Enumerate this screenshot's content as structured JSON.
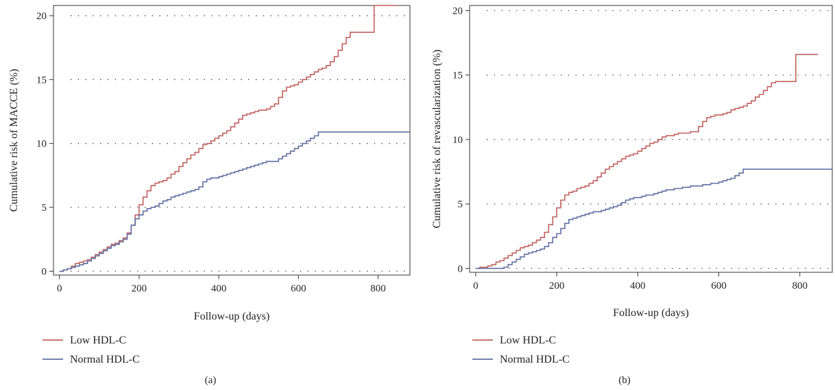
{
  "chart_data": [
    {
      "type": "line",
      "panel_label": "(a)",
      "xlabel": "Follow-up (days)",
      "ylabel": "Cumulative risk of MACCE (%)",
      "xlim": [
        -15,
        880
      ],
      "ylim": [
        -0.3,
        20.8
      ],
      "xticks": [
        0,
        200,
        400,
        600,
        800
      ],
      "yticks": [
        0,
        5,
        10,
        15,
        20
      ],
      "grid": "horizontal-dotted",
      "legend_position": "bottom-left",
      "series": [
        {
          "name": "Low HDL-C",
          "color": "#c0605c",
          "x": [
            0,
            10,
            20,
            30,
            40,
            50,
            60,
            70,
            80,
            90,
            100,
            110,
            120,
            130,
            140,
            150,
            160,
            170,
            180,
            190,
            200,
            210,
            220,
            230,
            240,
            250,
            260,
            270,
            280,
            290,
            300,
            310,
            320,
            330,
            340,
            350,
            360,
            370,
            380,
            390,
            400,
            410,
            420,
            430,
            440,
            450,
            460,
            470,
            480,
            490,
            500,
            510,
            520,
            530,
            540,
            550,
            560,
            570,
            580,
            590,
            600,
            610,
            620,
            630,
            640,
            650,
            660,
            670,
            680,
            690,
            700,
            710,
            720,
            730,
            740,
            760,
            780,
            790,
            800,
            820,
            845
          ],
          "y": [
            0,
            0.1,
            0.2,
            0.4,
            0.6,
            0.7,
            0.8,
            0.9,
            1.1,
            1.3,
            1.5,
            1.7,
            1.9,
            2.1,
            2.2,
            2.4,
            2.6,
            3.0,
            3.6,
            4.4,
            5.2,
            5.8,
            6.3,
            6.7,
            6.9,
            7.0,
            7.1,
            7.3,
            7.6,
            7.8,
            8.2,
            8.5,
            8.8,
            9.1,
            9.3,
            9.6,
            9.9,
            10.0,
            10.2,
            10.4,
            10.6,
            10.8,
            11.0,
            11.3,
            11.6,
            11.9,
            12.2,
            12.3,
            12.4,
            12.5,
            12.6,
            12.6,
            12.7,
            12.9,
            13.1,
            13.6,
            14.1,
            14.4,
            14.5,
            14.6,
            14.8,
            15.0,
            15.2,
            15.4,
            15.6,
            15.8,
            15.9,
            16.1,
            16.4,
            16.8,
            17.3,
            17.8,
            18.3,
            18.7,
            18.7,
            18.7,
            18.7,
            20.8,
            20.8,
            20.8,
            20.8
          ]
        },
        {
          "name": "Normal HDL-C",
          "color": "#5e6fa3",
          "x": [
            0,
            10,
            20,
            30,
            40,
            50,
            60,
            70,
            80,
            90,
            100,
            110,
            120,
            130,
            140,
            150,
            160,
            170,
            180,
            190,
            200,
            210,
            220,
            230,
            240,
            250,
            260,
            270,
            280,
            290,
            300,
            310,
            320,
            330,
            340,
            350,
            360,
            370,
            380,
            390,
            400,
            410,
            420,
            430,
            440,
            450,
            460,
            470,
            480,
            490,
            500,
            510,
            520,
            530,
            540,
            550,
            560,
            570,
            580,
            590,
            600,
            610,
            620,
            630,
            640,
            650,
            660,
            700,
            760,
            820,
            880
          ],
          "y": [
            0,
            0.1,
            0.2,
            0.3,
            0.4,
            0.5,
            0.6,
            0.8,
            1.0,
            1.2,
            1.4,
            1.6,
            1.8,
            2.0,
            2.1,
            2.3,
            2.5,
            2.9,
            3.6,
            4.1,
            4.4,
            4.7,
            4.9,
            5.0,
            5.1,
            5.3,
            5.5,
            5.6,
            5.8,
            5.9,
            6.0,
            6.1,
            6.2,
            6.3,
            6.4,
            6.6,
            7.0,
            7.2,
            7.3,
            7.3,
            7.4,
            7.5,
            7.6,
            7.7,
            7.8,
            7.9,
            8.0,
            8.1,
            8.2,
            8.3,
            8.4,
            8.5,
            8.6,
            8.6,
            8.6,
            8.8,
            9.0,
            9.2,
            9.4,
            9.6,
            9.8,
            10.0,
            10.2,
            10.4,
            10.6,
            10.9,
            10.9,
            10.9,
            10.9,
            10.9,
            10.9
          ]
        }
      ]
    },
    {
      "type": "line",
      "panel_label": "(b)",
      "xlabel": "Follow-up (days)",
      "ylabel": "Cumulative risk of revascularization (%)",
      "xlim": [
        -15,
        880
      ],
      "ylim": [
        -0.3,
        20.4
      ],
      "xticks": [
        0,
        200,
        400,
        600,
        800
      ],
      "yticks": [
        0,
        5,
        10,
        15,
        20
      ],
      "grid": "horizontal-dotted",
      "legend_position": "bottom-left",
      "series": [
        {
          "name": "Low HDL-C",
          "color": "#c0605c",
          "x": [
            0,
            10,
            20,
            30,
            40,
            50,
            60,
            70,
            80,
            90,
            100,
            110,
            120,
            130,
            140,
            150,
            160,
            170,
            180,
            190,
            200,
            210,
            220,
            230,
            240,
            250,
            260,
            270,
            280,
            290,
            300,
            310,
            320,
            330,
            340,
            350,
            360,
            370,
            380,
            390,
            400,
            410,
            420,
            430,
            440,
            450,
            460,
            470,
            480,
            490,
            500,
            510,
            520,
            530,
            540,
            550,
            560,
            570,
            580,
            590,
            600,
            610,
            620,
            630,
            640,
            650,
            660,
            670,
            680,
            690,
            700,
            710,
            720,
            730,
            740,
            760,
            780,
            790,
            800,
            820,
            845
          ],
          "y": [
            0,
            0.1,
            0.1,
            0.2,
            0.3,
            0.5,
            0.6,
            0.8,
            1.0,
            1.2,
            1.4,
            1.6,
            1.7,
            1.8,
            2.0,
            2.2,
            2.4,
            2.8,
            3.4,
            4.0,
            4.7,
            5.3,
            5.7,
            5.9,
            6.0,
            6.2,
            6.3,
            6.4,
            6.6,
            6.8,
            7.1,
            7.4,
            7.7,
            7.9,
            8.1,
            8.3,
            8.5,
            8.7,
            8.8,
            8.9,
            9.1,
            9.3,
            9.5,
            9.7,
            9.8,
            10.0,
            10.2,
            10.3,
            10.3,
            10.4,
            10.5,
            10.5,
            10.5,
            10.6,
            10.6,
            11.0,
            11.4,
            11.7,
            11.8,
            11.9,
            11.9,
            12.0,
            12.1,
            12.3,
            12.4,
            12.5,
            12.6,
            12.8,
            13.0,
            13.3,
            13.5,
            13.8,
            14.1,
            14.4,
            14.5,
            14.5,
            14.5,
            16.6,
            16.6,
            16.6,
            16.6
          ]
        },
        {
          "name": "Normal HDL-C",
          "color": "#5e6fa3",
          "x": [
            0,
            10,
            20,
            30,
            40,
            50,
            60,
            70,
            80,
            90,
            100,
            110,
            120,
            130,
            140,
            150,
            160,
            170,
            180,
            190,
            200,
            210,
            220,
            230,
            240,
            250,
            260,
            270,
            280,
            290,
            300,
            310,
            320,
            330,
            340,
            350,
            360,
            370,
            380,
            390,
            400,
            410,
            420,
            430,
            440,
            450,
            460,
            470,
            480,
            490,
            500,
            510,
            520,
            530,
            540,
            550,
            560,
            570,
            580,
            590,
            600,
            610,
            620,
            630,
            640,
            650,
            660,
            700,
            760,
            820,
            880
          ],
          "y": [
            0,
            0,
            0,
            0,
            0,
            0,
            0,
            0.1,
            0.3,
            0.5,
            0.7,
            0.9,
            1.1,
            1.2,
            1.3,
            1.4,
            1.5,
            1.7,
            2.0,
            2.4,
            2.7,
            3.1,
            3.5,
            3.8,
            3.9,
            4.0,
            4.1,
            4.2,
            4.3,
            4.4,
            4.4,
            4.5,
            4.6,
            4.7,
            4.8,
            4.9,
            5.1,
            5.3,
            5.4,
            5.5,
            5.5,
            5.6,
            5.7,
            5.7,
            5.8,
            5.9,
            6.0,
            6.1,
            6.1,
            6.2,
            6.2,
            6.3,
            6.3,
            6.4,
            6.4,
            6.4,
            6.5,
            6.5,
            6.6,
            6.6,
            6.7,
            6.8,
            6.9,
            7.0,
            7.2,
            7.4,
            7.7,
            7.7,
            7.7,
            7.7,
            7.7
          ]
        }
      ]
    }
  ]
}
